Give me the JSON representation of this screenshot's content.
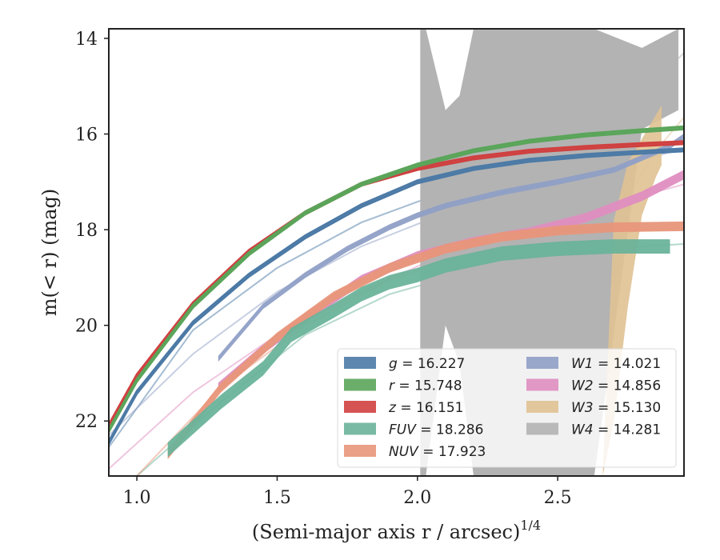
{
  "chart_data": {
    "type": "line",
    "title": "",
    "xlabel": "(Semi-major axis r / arcsec)",
    "xlabel_exponent": "1/4",
    "ylabel": "m(< r) (mag)",
    "xlim": [
      0.9,
      2.95
    ],
    "ylim": [
      23.15,
      13.8
    ],
    "y_inverted": true,
    "grid": false,
    "legend_position": "lower-right",
    "x_ticks": [
      1.0,
      1.5,
      2.0,
      2.5
    ],
    "x_tick_labels": [
      "1.0",
      "1.5",
      "2.0",
      "2.5"
    ],
    "y_ticks": [
      14,
      16,
      18,
      20,
      22
    ],
    "y_tick_labels": [
      "14",
      "16",
      "18",
      "20",
      "22"
    ],
    "series": [
      {
        "name": "g = 16.227",
        "legend_label": "g",
        "legend_value": "= 16.227",
        "color": "#4c7aa6",
        "band_width": 0.06,
        "x": [
          0.9,
          1.0,
          1.2,
          1.4,
          1.6,
          1.8,
          2.0,
          2.2,
          2.4,
          2.6,
          2.8,
          2.95
        ],
        "y": [
          22.45,
          21.4,
          19.95,
          18.95,
          18.15,
          17.5,
          17.0,
          16.72,
          16.55,
          16.45,
          16.38,
          16.33
        ]
      },
      {
        "name": "r = 15.748",
        "legend_label": "r",
        "legend_value": "= 15.748",
        "color": "#5aa55a",
        "band_width": 0.06,
        "x": [
          0.9,
          1.0,
          1.2,
          1.4,
          1.6,
          1.8,
          2.0,
          2.2,
          2.4,
          2.6,
          2.8,
          2.95
        ],
        "y": [
          22.2,
          21.15,
          19.6,
          18.5,
          17.65,
          17.05,
          16.65,
          16.35,
          16.15,
          16.02,
          15.93,
          15.87
        ]
      },
      {
        "name": "z = 16.151",
        "legend_label": "z",
        "legend_value": "= 16.151",
        "color": "#d04040",
        "band_width": 0.06,
        "x": [
          0.9,
          1.0,
          1.2,
          1.4,
          1.6,
          1.8,
          2.0,
          2.2,
          2.4,
          2.6,
          2.8,
          2.95
        ],
        "y": [
          22.1,
          21.05,
          19.55,
          18.45,
          17.65,
          17.05,
          16.72,
          16.5,
          16.36,
          16.28,
          16.22,
          16.18
        ]
      },
      {
        "name": "FUV = 18.286",
        "legend_label": "FUV",
        "legend_value": "= 18.286",
        "color": "#6ab39a",
        "band_width": 0.3,
        "x": [
          1.11,
          1.3,
          1.45,
          1.55,
          1.7,
          1.8,
          1.9,
          2.0,
          2.1,
          2.3,
          2.5,
          2.7,
          2.9
        ],
        "y": [
          22.6,
          21.6,
          20.9,
          20.2,
          19.7,
          19.35,
          19.1,
          18.95,
          18.75,
          18.5,
          18.4,
          18.35,
          18.35
        ]
      },
      {
        "name": "NUV = 17.923",
        "legend_label": "NUV",
        "legend_value": "= 17.923",
        "color": "#e8967a",
        "band_width": 0.2,
        "x": [
          1.11,
          1.3,
          1.5,
          1.7,
          1.9,
          2.1,
          2.3,
          2.5,
          2.7,
          2.95
        ],
        "y": [
          22.7,
          21.3,
          20.25,
          19.4,
          18.8,
          18.4,
          18.15,
          18.02,
          17.95,
          17.93
        ]
      },
      {
        "name": "W1 = 14.021",
        "legend_label": "W1",
        "legend_value": "= 14.021",
        "color": "#8f9fc6",
        "band_width": 0.12,
        "x": [
          1.29,
          1.45,
          1.6,
          1.75,
          1.9,
          2.0,
          2.1,
          2.3,
          2.5,
          2.7,
          2.9,
          2.95
        ],
        "y": [
          20.7,
          19.6,
          18.95,
          18.4,
          17.95,
          17.7,
          17.5,
          17.22,
          17.0,
          16.75,
          16.25,
          16.05
        ]
      },
      {
        "name": "W2 = 14.856",
        "legend_label": "W2",
        "legend_value": "= 14.856",
        "color": "#df8ec0",
        "band_width": 0.2,
        "x": [
          1.29,
          1.45,
          1.6,
          1.8,
          2.0,
          2.2,
          2.4,
          2.6,
          2.8,
          2.95
        ],
        "y": [
          21.3,
          20.5,
          19.85,
          19.05,
          18.55,
          18.25,
          18.05,
          17.75,
          17.3,
          16.85
        ]
      },
      {
        "name": "W3 = 15.130",
        "legend_label": "W3",
        "legend_value": "= 15.130",
        "color": "#e0c293",
        "x": [
          2.66,
          2.7,
          2.75,
          2.8,
          2.85,
          2.87
        ],
        "y_low": [
          23.15,
          22.0,
          19.6,
          17.7,
          16.9,
          16.65
        ],
        "y_high": [
          23.15,
          17.8,
          16.6,
          16.1,
          15.6,
          15.4
        ]
      },
      {
        "name": "W4 = 14.281",
        "legend_label": "W4",
        "legend_value": "= 14.281",
        "color": "#b3b3b3",
        "x": [
          2.01,
          2.03,
          2.1,
          2.15,
          2.2,
          2.3,
          2.4,
          2.5,
          2.6,
          2.63,
          2.8,
          2.93
        ],
        "y_low": [
          23.15,
          23.15,
          20.0,
          20.8,
          23.15,
          23.15,
          23.15,
          23.15,
          23.15,
          23.15,
          15.9,
          15.5
        ],
        "y_high": [
          13.8,
          13.8,
          15.5,
          15.2,
          13.8,
          13.8,
          13.8,
          13.8,
          13.8,
          13.8,
          14.2,
          13.8
        ]
      }
    ],
    "faint_model_curves": [
      {
        "color": "#4c7aa6",
        "x": [
          0.9,
          1.2,
          1.5,
          1.8,
          2.1,
          2.4,
          2.7,
          2.95
        ],
        "y": [
          22.55,
          20.1,
          18.8,
          17.85,
          17.2,
          16.8,
          16.5,
          16.35
        ]
      },
      {
        "color": "#8f9fc6",
        "x": [
          0.9,
          1.2,
          1.5,
          1.8,
          2.1,
          2.4,
          2.7,
          2.95
        ],
        "y": [
          22.3,
          20.6,
          19.3,
          18.35,
          17.65,
          17.15,
          16.7,
          16.3
        ]
      },
      {
        "color": "#df8ec0",
        "x": [
          0.9,
          1.2,
          1.5,
          1.8,
          2.1,
          2.4,
          2.7,
          2.95
        ],
        "y": [
          23.0,
          21.4,
          20.2,
          19.3,
          18.5,
          17.95,
          17.45,
          17.05
        ]
      },
      {
        "color": "#6ab39a",
        "x": [
          1.0,
          1.3,
          1.6,
          1.9,
          2.2,
          2.5,
          2.8,
          2.95
        ],
        "y": [
          23.15,
          21.6,
          20.2,
          19.35,
          18.85,
          18.55,
          18.35,
          18.3
        ]
      },
      {
        "color": "#e8967a",
        "x": [
          1.0,
          1.3,
          1.6,
          1.9,
          2.2,
          2.5,
          2.8,
          2.95
        ],
        "y": [
          23.15,
          21.3,
          20.0,
          19.05,
          18.5,
          18.2,
          18.02,
          17.95
        ]
      },
      {
        "color": "#b3b3b3",
        "x": [
          2.3,
          2.4,
          2.5,
          2.6,
          2.7,
          2.8,
          2.9,
          2.95
        ],
        "y": [
          23.15,
          20.9,
          19.3,
          17.8,
          16.6,
          15.5,
          14.6,
          14.3
        ]
      },
      {
        "color": "#e0c293",
        "x": [
          2.55,
          2.62,
          2.68,
          2.75,
          2.85,
          2.95
        ],
        "y": [
          23.15,
          20.5,
          18.5,
          17.3,
          16.35,
          15.65
        ]
      }
    ]
  }
}
